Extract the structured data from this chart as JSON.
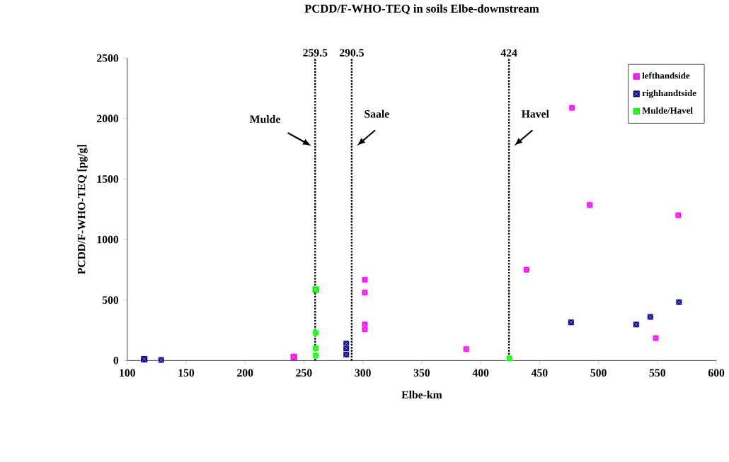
{
  "chart_data": {
    "type": "scatter",
    "title": "PCDD/F-WHO-TEQ in soils Elbe-downstream",
    "xlabel": "Elbe-km",
    "ylabel": "PCDD/F-WHO-TEQ [pg/g]",
    "xlim": [
      100,
      600
    ],
    "xticks": [
      100,
      150,
      200,
      250,
      300,
      350,
      400,
      450,
      500,
      550,
      600
    ],
    "ylim": [
      0,
      2500
    ],
    "yticks": [
      0,
      500,
      1000,
      1500,
      2000,
      2500
    ],
    "marker": "square",
    "legend": "top right",
    "grid": false,
    "series": [
      {
        "name": "lefthandside",
        "color": "#ff00ff",
        "x": [
          241.4,
          301.6,
          301.6,
          301.6,
          301.6,
          387.7,
          438.9,
          477.5,
          492.5,
          548.6,
          567.7
        ],
        "values": [
          29,
          668,
          562,
          298,
          259,
          95,
          751,
          2089,
          1286,
          185,
          1201
        ]
      },
      {
        "name": "righhandtside",
        "color": "#000080",
        "x": [
          114.4,
          128.8,
          285.9,
          285.9,
          285.9,
          476.7,
          532,
          544,
          568.3
        ],
        "values": [
          11,
          5,
          140,
          100,
          50,
          316,
          298,
          361,
          483
        ]
      },
      {
        "name": "Mulde/Havel",
        "color": "#00ff00",
        "x": [
          260,
          260,
          260,
          260,
          424.4
        ],
        "values": [
          586,
          230,
          101,
          41,
          18
        ]
      }
    ],
    "ref_lines": [
      {
        "axis": "x",
        "value": 259.5,
        "label": "259.5",
        "line_style": "dotted"
      },
      {
        "axis": "x",
        "value": 290.5,
        "label": "290.5",
        "line_style": "dotted"
      },
      {
        "axis": "x",
        "value": 424,
        "label": "424",
        "line_style": "dotted"
      }
    ],
    "annotations": [
      "Mulde",
      "Saale",
      "Havel"
    ]
  }
}
